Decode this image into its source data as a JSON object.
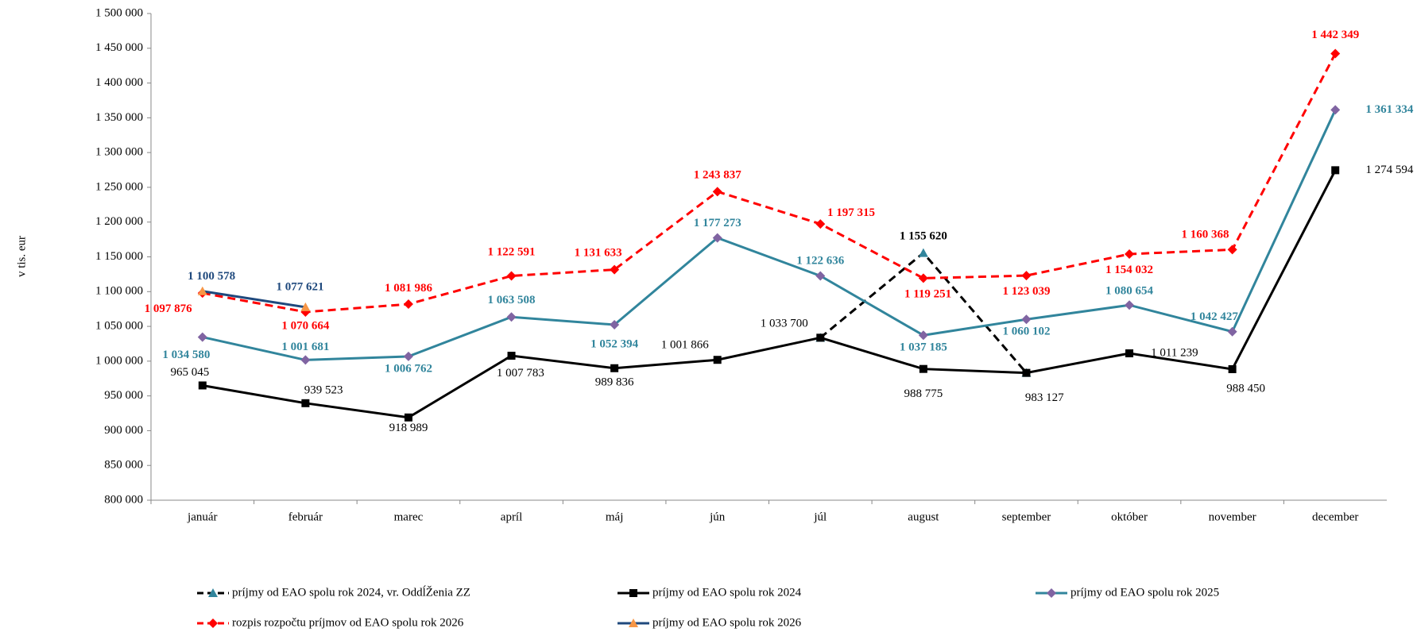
{
  "chart_data": {
    "type": "line",
    "y_label": "v tis. eur",
    "categories": [
      "január",
      "február",
      "marec",
      "apríl",
      "máj",
      "jún",
      "júl",
      "august",
      "september",
      "október",
      "november",
      "december"
    ],
    "ylim": [
      800000,
      1500000
    ],
    "yticks": [
      {
        "value": 800000,
        "label": "800 000"
      },
      {
        "value": 850000,
        "label": "850 000"
      },
      {
        "value": 900000,
        "label": "900 000"
      },
      {
        "value": 950000,
        "label": "950 000"
      },
      {
        "value": 1000000,
        "label": "1 000 000"
      },
      {
        "value": 1050000,
        "label": "1 050 000"
      },
      {
        "value": 1100000,
        "label": "1 100 000"
      },
      {
        "value": 1150000,
        "label": "1 150 000"
      },
      {
        "value": 1200000,
        "label": "1 200 000"
      },
      {
        "value": 1250000,
        "label": "1 250 000"
      },
      {
        "value": 1300000,
        "label": "1 300 000"
      },
      {
        "value": 1350000,
        "label": "1 350 000"
      },
      {
        "value": 1400000,
        "label": "1 400 000"
      },
      {
        "value": 1450000,
        "label": "1 450 000"
      },
      {
        "value": 1500000,
        "label": "1 500 000"
      }
    ],
    "series": [
      {
        "name": "príjmy od EAO spolu rok 2024, vr. OddĺŽenia ZZ",
        "color": "#000000",
        "dashed": true,
        "marker": "triangle",
        "marker_color": "#31859c",
        "bold_labels": true,
        "values": [
          null,
          null,
          null,
          null,
          null,
          null,
          1033700,
          1155620,
          983127,
          null,
          null,
          null
        ],
        "value_labels": [
          null,
          null,
          null,
          null,
          null,
          null,
          null,
          "1 155 620",
          null,
          null,
          null,
          null
        ]
      },
      {
        "name": "príjmy od EAO spolu rok 2024",
        "color": "#000000",
        "dashed": false,
        "marker": "square",
        "marker_color": "#000000",
        "bold_labels": false,
        "values": [
          965045,
          939523,
          918989,
          1007783,
          989836,
          1001866,
          1033700,
          988775,
          983127,
          1011239,
          988450,
          1274594
        ],
        "value_labels": [
          "965 045",
          "939 523",
          "918 989",
          "1 007 783",
          "989 836",
          "1 001 866",
          "1 033 700",
          "988 775",
          "983 127",
          "1 011 239",
          "988 450",
          "1 274 594"
        ]
      },
      {
        "name": "príjmy od EAO spolu rok 2025",
        "color": "#31859c",
        "dashed": false,
        "marker": "diamond",
        "marker_color": "#8064a2",
        "bold_labels": true,
        "values": [
          1034580,
          1001681,
          1006762,
          1063508,
          1052394,
          1177273,
          1122636,
          1037185,
          1060102,
          1080654,
          1042427,
          1361334
        ],
        "value_labels": [
          "1 034 580",
          "1 001 681",
          "1 006 762",
          "1 063 508",
          "1 052 394",
          "1 177 273",
          "1 122 636",
          "1 037 185",
          "1 060 102",
          "1 080 654",
          "1 042 427",
          "1 361 334"
        ]
      },
      {
        "name": "rozpis rozpočtu príjmov od EAO spolu rok 2026",
        "color": "#ff0000",
        "dashed": true,
        "marker": "diamond",
        "marker_color": "#ff0000",
        "bold_labels": true,
        "values": [
          1097876,
          1070664,
          1081986,
          1122591,
          1131633,
          1243837,
          1197315,
          1119251,
          1123039,
          1154032,
          1160368,
          1442349
        ],
        "value_labels": [
          "1 097 876",
          "1 070 664",
          "1 081 986",
          "1 122 591",
          "1 131 633",
          "1 243 837",
          "1 197 315",
          "1 119 251",
          "1 123 039",
          "1 154 032",
          "1 160 368",
          "1 442 349"
        ]
      },
      {
        "name": "príjmy od EAO spolu rok 2026",
        "color": "#1f497d",
        "dashed": false,
        "marker": "triangle",
        "marker_color": "#f79646",
        "bold_labels": true,
        "values": [
          1100578,
          1077621,
          null,
          null,
          null,
          null,
          null,
          null,
          null,
          null,
          null,
          null
        ],
        "value_labels": [
          "1 100 578",
          "1 077 621",
          null,
          null,
          null,
          null,
          null,
          null,
          null,
          null,
          null,
          null
        ]
      }
    ]
  }
}
